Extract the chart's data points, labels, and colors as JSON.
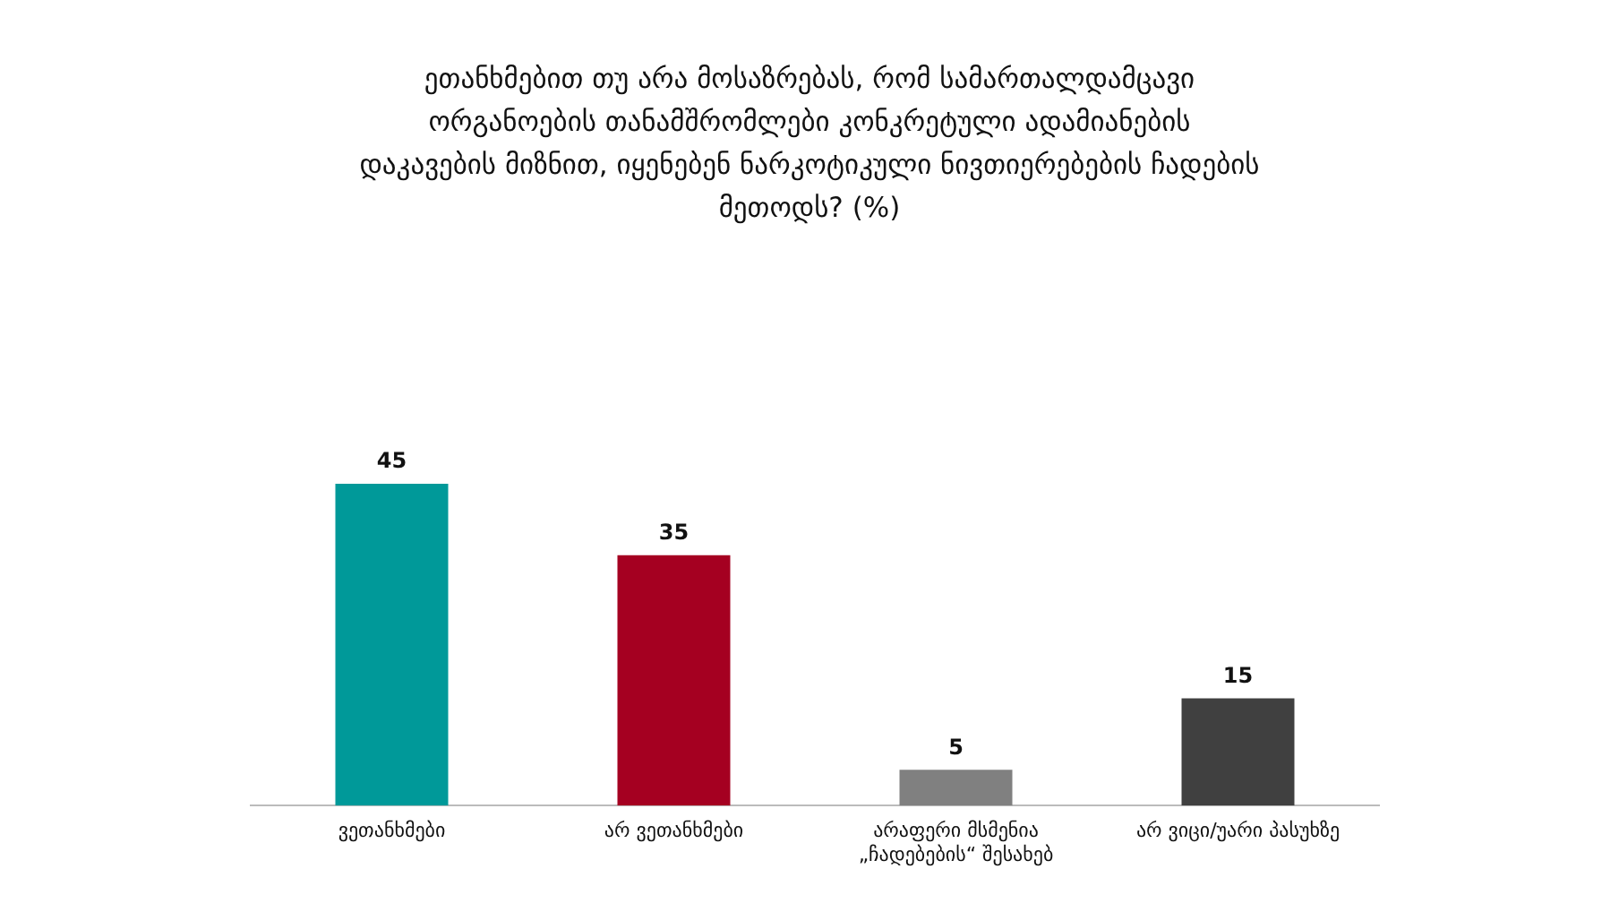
{
  "chart_data": {
    "type": "bar",
    "title": "ეთანხმებით თუ არა მოსაზრებას, რომ სამართალდამცავი ორგანოების თანამშრომლები კონკრეტული ადამიანების დაკავების მიზნით, იყენებენ ნარკოტიკული ნივთიერებების ჩადების მეთოდს? (%)",
    "categories": [
      "ვეთანხმები",
      "არ ვეთანხმები",
      "არაფერი მსმენია „ჩადებების“ შესახებ",
      "არ ვიცი/უარი პასუხზე"
    ],
    "values": [
      45,
      35,
      5,
      15
    ],
    "colors": [
      "#009999",
      "#a50021",
      "#808080",
      "#404040"
    ],
    "data_labels": true,
    "grid": false,
    "legend": false
  }
}
